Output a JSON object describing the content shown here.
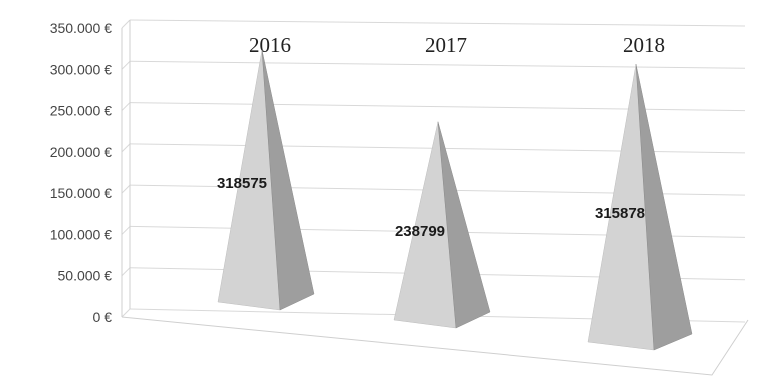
{
  "chart_data": {
    "type": "bar",
    "style": "3d-pyramid",
    "categories": [
      "2016",
      "2017",
      "2018"
    ],
    "values": [
      318575,
      238799,
      315878
    ],
    "data_labels": [
      "318575",
      "238799",
      "315878"
    ],
    "yticks": [
      "0 €",
      "50.000 €",
      "100.000 €",
      "150.000 €",
      "200.000 €",
      "250.000 €",
      "300.000 €",
      "350.000 €"
    ],
    "ylim": [
      0,
      350000
    ],
    "grid": true,
    "legend": "none",
    "bar_color": "#c8c8c8"
  }
}
